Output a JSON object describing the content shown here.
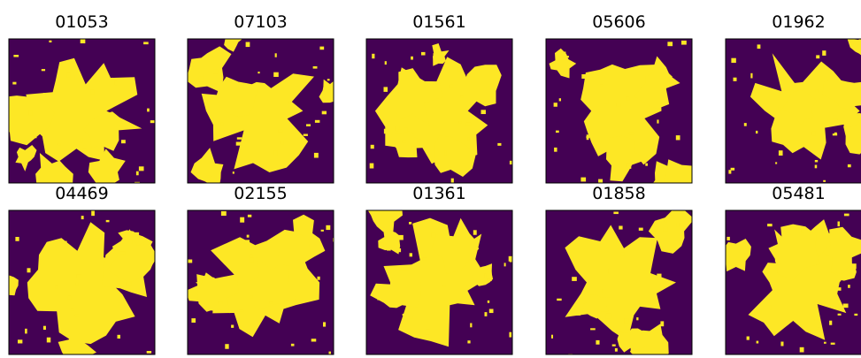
{
  "panels": [
    {
      "title": "01053"
    },
    {
      "title": "07103"
    },
    {
      "title": "01561"
    },
    {
      "title": "05606"
    },
    {
      "title": "01962"
    },
    {
      "title": "04469"
    },
    {
      "title": "02155"
    },
    {
      "title": "01361"
    },
    {
      "title": "01858"
    },
    {
      "title": "05481"
    }
  ]
}
